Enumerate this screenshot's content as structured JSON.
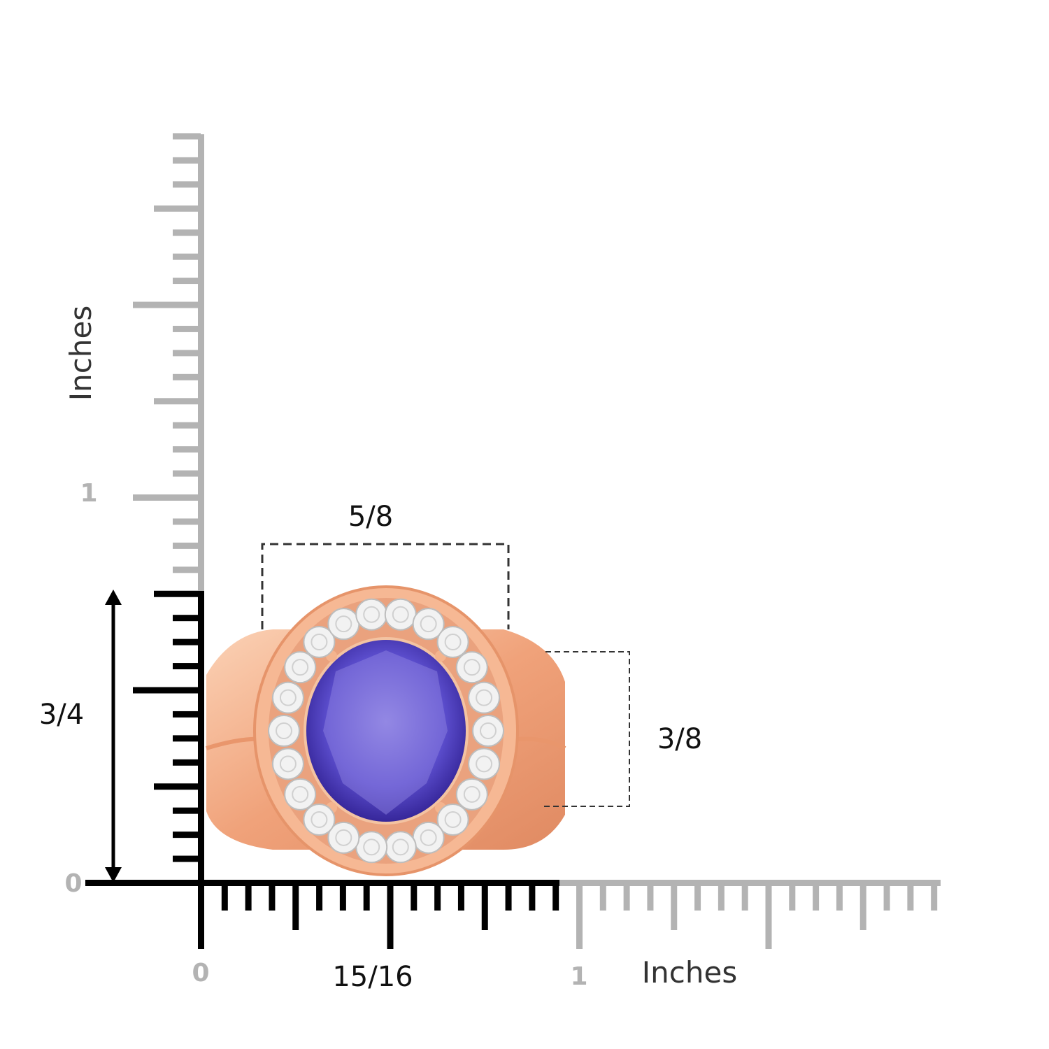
{
  "vertical_ruler": {
    "label": "Inches",
    "zero": "0",
    "one": "1"
  },
  "horizontal_ruler": {
    "label": "Inches",
    "zero": "0",
    "one": "1"
  },
  "dimensions": {
    "width": "15/16",
    "height": "3/4",
    "head_width": "5/8",
    "head_height": "3/8"
  }
}
